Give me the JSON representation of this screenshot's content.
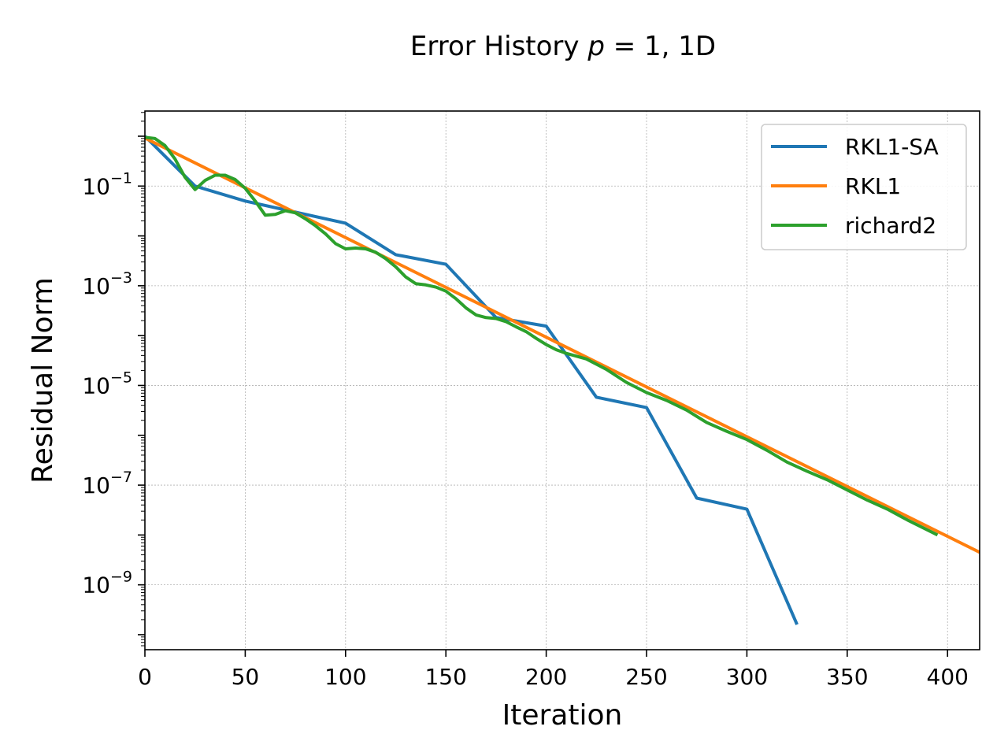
{
  "chart_data": {
    "type": "line",
    "title": {
      "prefix": "Error History ",
      "math_var": "p",
      "math_rest": " = 1",
      "suffix": ", 1D"
    },
    "xlabel": "Iteration",
    "ylabel": "Residual Norm",
    "xlim": [
      0,
      416
    ],
    "ylim": [
      5e-11,
      3.2
    ],
    "yscale": "log",
    "grid": true,
    "legend_position": "top-right",
    "x_ticks": [
      {
        "value": 0,
        "label": "0"
      },
      {
        "value": 50,
        "label": "50"
      },
      {
        "value": 100,
        "label": "100"
      },
      {
        "value": 150,
        "label": "150"
      },
      {
        "value": 200,
        "label": "200"
      },
      {
        "value": 250,
        "label": "250"
      },
      {
        "value": 300,
        "label": "300"
      },
      {
        "value": 350,
        "label": "350"
      },
      {
        "value": 400,
        "label": "400"
      }
    ],
    "y_ticks": [
      {
        "value": 0.1,
        "base": "10",
        "exp": "−1"
      },
      {
        "value": 0.001,
        "base": "10",
        "exp": "−3"
      },
      {
        "value": 1e-05,
        "base": "10",
        "exp": "−5"
      },
      {
        "value": 1e-07,
        "base": "10",
        "exp": "−7"
      },
      {
        "value": 1e-09,
        "base": "10",
        "exp": "−9"
      }
    ],
    "series": [
      {
        "name": "RKL1-SA",
        "color": "#1f77b4",
        "x": [
          0,
          25,
          50,
          75,
          100,
          125,
          150,
          175,
          200,
          225,
          250,
          275,
          300,
          325
        ],
        "y": [
          1.0,
          0.1,
          0.05,
          0.03,
          0.018,
          0.0042,
          0.0027,
          0.00023,
          0.000155,
          5.8e-06,
          3.6e-06,
          5.5e-08,
          3.3e-08,
          1.6e-10
        ]
      },
      {
        "name": "RKL1",
        "color": "#ff7f0e",
        "x": [
          0,
          416
        ],
        "y": [
          0.92,
          4.5e-09
        ]
      },
      {
        "name": "richard2",
        "color": "#2ca02c",
        "x": [
          0,
          5,
          10,
          15,
          20,
          25,
          30,
          35,
          40,
          45,
          50,
          55,
          60,
          65,
          70,
          75,
          80,
          85,
          90,
          95,
          100,
          105,
          110,
          115,
          120,
          125,
          130,
          135,
          140,
          145,
          150,
          155,
          160,
          165,
          170,
          175,
          180,
          185,
          190,
          195,
          200,
          205,
          210,
          220,
          230,
          240,
          250,
          260,
          270,
          280,
          290,
          300,
          310,
          320,
          330,
          340,
          350,
          360,
          370,
          380,
          395
        ],
        "y": [
          0.95,
          0.9,
          0.65,
          0.35,
          0.15,
          0.085,
          0.13,
          0.165,
          0.165,
          0.135,
          0.09,
          0.05,
          0.026,
          0.027,
          0.032,
          0.029,
          0.022,
          0.016,
          0.011,
          0.007,
          0.0055,
          0.0057,
          0.0055,
          0.0047,
          0.0035,
          0.0024,
          0.0015,
          0.0011,
          0.00104,
          0.00094,
          0.00078,
          0.00055,
          0.00036,
          0.00026,
          0.00023,
          0.00022,
          0.00019,
          0.00015,
          0.00012,
          8.8e-05,
          6.6e-05,
          5.2e-05,
          4.4e-05,
          3.4e-05,
          2.1e-05,
          1.15e-05,
          7.2e-06,
          5e-06,
          3.2e-06,
          1.8e-06,
          1.2e-06,
          8.2e-07,
          5e-07,
          2.9e-07,
          1.9e-07,
          1.28e-07,
          8e-08,
          5e-08,
          3.3e-08,
          2e-08,
          1e-08
        ]
      }
    ]
  }
}
